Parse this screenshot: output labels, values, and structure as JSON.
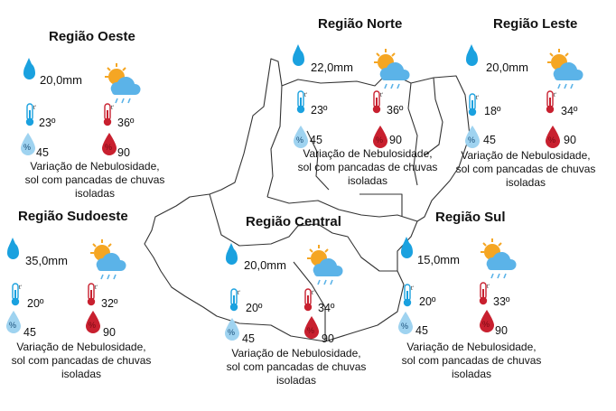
{
  "map": {
    "regions": [
      {
        "key": "oeste",
        "name": "Região Oeste",
        "rain": "20,0mm",
        "temp_min": "23º",
        "temp_max": "36º",
        "humidity_min": "45",
        "humidity_max": "90",
        "forecast": [
          "Variação de Nebulosidade,",
          "sol com pancadas de chuvas",
          "isoladas"
        ]
      },
      {
        "key": "norte",
        "name": "Região Norte",
        "rain": "22,0mm",
        "temp_min": "23º",
        "temp_max": "36º",
        "humidity_min": "45",
        "humidity_max": "90",
        "forecast": [
          "Variação de Nebulosidade,",
          "sol com pancadas de chuvas",
          "isoladas"
        ]
      },
      {
        "key": "leste",
        "name": "Região Leste",
        "rain": "20,0mm",
        "temp_min": "18º",
        "temp_max": "34º",
        "humidity_min": "45",
        "humidity_max": "90",
        "forecast": [
          "Variação de Nebulosidade,",
          "sol com pancadas de chuvas",
          "isoladas"
        ]
      },
      {
        "key": "sudoeste",
        "name": "Região Sudoeste",
        "rain": "35,0mm",
        "temp_min": "20º",
        "temp_max": "32º",
        "humidity_min": "45",
        "humidity_max": "90",
        "forecast": [
          "Variação de Nebulosidade,",
          "sol com pancadas de chuvas",
          "isoladas"
        ]
      },
      {
        "key": "central",
        "name": "Região Central",
        "rain": "20,0mm",
        "temp_min": "20º",
        "temp_max": "34º",
        "humidity_min": "45",
        "humidity_max": "90",
        "forecast": [
          "Variação de Nebulosidade,",
          "sol com pancadas de chuvas",
          "isoladas"
        ]
      },
      {
        "key": "sul",
        "name": "Região Sul",
        "rain": "15,0mm",
        "temp_min": "20º",
        "temp_max": "33º",
        "humidity_min": "45",
        "humidity_max": "90",
        "forecast": [
          "Variação de Nebulosidade,",
          "sol com pancadas de chuvas",
          "isoladas"
        ]
      }
    ],
    "icons": {
      "rain": "raindrop-icon",
      "weather": "sun-cloud-rain-icon",
      "temp_min": "thermometer-cold-icon",
      "temp_max": "thermometer-hot-icon",
      "humidity_min": "humidity-low-icon",
      "humidity_max": "humidity-high-icon"
    },
    "colors": {
      "rain_blue": "#1aa1df",
      "cloud_blue": "#5bb3e8",
      "sun_orange": "#f5a623",
      "hot_red": "#c8202f",
      "humidity_light": "#9fd3f0",
      "border": "#333333"
    }
  }
}
